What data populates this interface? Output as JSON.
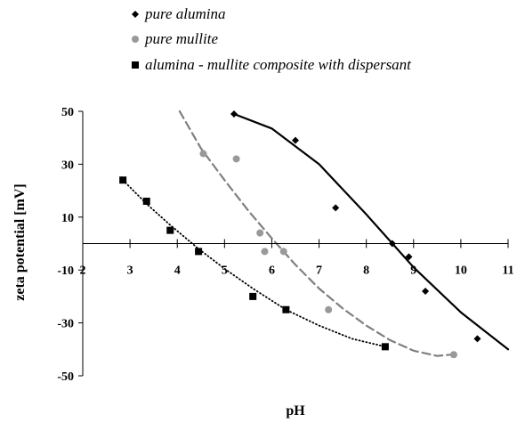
{
  "chart_data": {
    "type": "scatter",
    "xlabel": "pH",
    "ylabel": "zeta  potential [mV]",
    "xlim": [
      2,
      11
    ],
    "ylim": [
      -50,
      50
    ],
    "x_ticks": [
      2,
      3,
      4,
      5,
      6,
      7,
      8,
      9,
      10,
      11
    ],
    "y_ticks": [
      50,
      30,
      10,
      -10,
      -30,
      -50
    ],
    "grid": false,
    "legend_position": "top",
    "series": [
      {
        "name": "pure alumina",
        "marker": "diamond",
        "color": "#000000",
        "line_style": "solid",
        "x": [
          5.2,
          6.5,
          7.35,
          8.55,
          8.9,
          9.25,
          10.35
        ],
        "y": [
          49,
          39,
          13.5,
          0,
          -5,
          -18,
          -36
        ],
        "trend_x": [
          5.2,
          6.0,
          7.0,
          8.0,
          9.0,
          10.0,
          11.0
        ],
        "trend_y": [
          49,
          43.5,
          30,
          11,
          -9,
          -26,
          -40
        ]
      },
      {
        "name": "pure mullite",
        "marker": "circle",
        "color": "#999999",
        "line_style": "dashed",
        "x": [
          4.55,
          5.25,
          5.75,
          5.85,
          6.25,
          7.2,
          9.85
        ],
        "y": [
          34,
          32,
          4,
          -3,
          -3,
          -25,
          -42
        ],
        "trend_x": [
          4.05,
          4.5,
          5.0,
          5.5,
          6.0,
          6.5,
          7.0,
          7.5,
          8.0,
          8.5,
          9.0,
          9.5,
          9.8
        ],
        "trend_y": [
          50,
          36,
          24,
          12.5,
          2,
          -8,
          -17,
          -24.5,
          -31,
          -36.5,
          -40.5,
          -42.5,
          -42
        ]
      },
      {
        "name": "alumina - mullite composite with dispersant",
        "marker": "square",
        "color": "#000000",
        "line_style": "dotted",
        "x": [
          2.85,
          3.35,
          3.85,
          4.45,
          5.6,
          6.3,
          8.4
        ],
        "y": [
          24,
          16,
          5,
          -3,
          -20,
          -25,
          -39
        ],
        "trend_x": [
          2.85,
          3.35,
          3.85,
          4.45,
          5.0,
          5.6,
          6.3,
          7.0,
          7.7,
          8.4
        ],
        "trend_y": [
          24,
          15,
          7,
          -2,
          -9.5,
          -17,
          -25,
          -31,
          -36,
          -39
        ]
      }
    ]
  }
}
